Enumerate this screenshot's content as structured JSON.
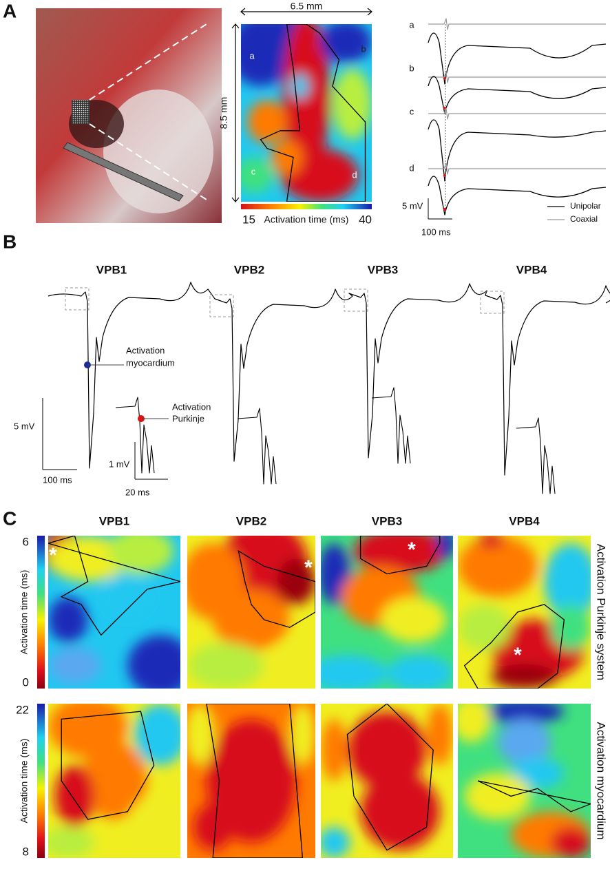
{
  "panel_a": {
    "label": "A",
    "map": {
      "width_label": "6.5 mm",
      "height_label": "8.5 mm",
      "site_labels": [
        "a",
        "b",
        "c",
        "d"
      ],
      "colorbar": {
        "min": 15,
        "title": "Activation time (ms)",
        "max": 40
      }
    },
    "traces": {
      "labels": [
        "a",
        "b",
        "c",
        "d"
      ],
      "scale_v": "5 mV",
      "scale_t": "100 ms",
      "legend": [
        "Unipolar",
        "Coaxial"
      ]
    }
  },
  "panel_b": {
    "label": "B",
    "beats": [
      "VPB1",
      "VPB2",
      "VPB3",
      "VPB4"
    ],
    "annotations": {
      "myocardium": [
        "Activation",
        "myocardium"
      ],
      "purkinje": [
        "Activation",
        "Purkinje"
      ]
    },
    "scale": {
      "v": "5 mV",
      "t": "100 ms"
    },
    "inset_scale": {
      "v": "1 mV",
      "t": "20 ms"
    }
  },
  "panel_c": {
    "label": "C",
    "beats": [
      "VPB1",
      "VPB2",
      "VPB3",
      "VPB4"
    ],
    "purkinje": {
      "row_label": "Activation Purkinje system",
      "colorbar": {
        "max": 6,
        "title": "Activation time (ms)",
        "min": 0
      }
    },
    "myocardium": {
      "row_label": "Activation myocardium",
      "colorbar": {
        "max": 22,
        "title": "Activation time (ms)",
        "min": 8
      }
    },
    "asterisks": [
      "*",
      "*",
      "*",
      "*"
    ]
  }
}
